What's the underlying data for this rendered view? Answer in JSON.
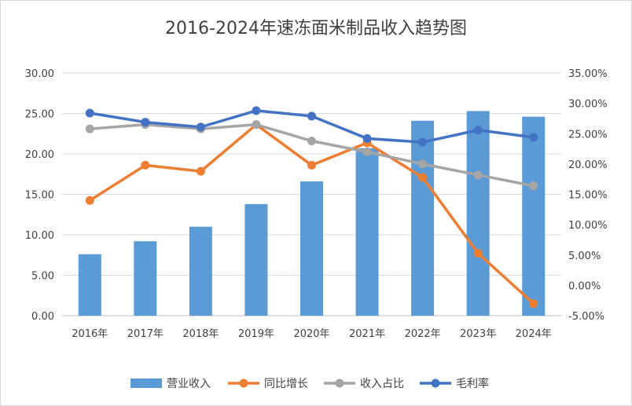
{
  "chart_data": {
    "type": "bar+line",
    "title": "2016-2024年速冻面米制品收入趋势图",
    "categories": [
      "2016年",
      "2017年",
      "2018年",
      "2019年",
      "2020年",
      "2021年",
      "2022年",
      "2023年",
      "2024年"
    ],
    "left_axis": {
      "ylim": [
        0,
        30
      ],
      "ticks": [
        "0.00",
        "5.00",
        "10.00",
        "15.00",
        "20.00",
        "25.00",
        "30.00"
      ]
    },
    "right_axis": {
      "ylim": [
        -5,
        35
      ],
      "ticks": [
        "-5.00%",
        "0.00%",
        "5.00%",
        "10.00%",
        "15.00%",
        "20.00%",
        "25.00%",
        "30.00%",
        "35.00%"
      ]
    },
    "series": [
      {
        "name": "营业收入",
        "type": "bar",
        "axis": "left",
        "color": "#5b9bd5",
        "values": [
          7.6,
          9.2,
          11.0,
          13.8,
          16.6,
          20.7,
          24.1,
          25.3,
          24.6
        ]
      },
      {
        "name": "同比增长",
        "type": "line",
        "axis": "right",
        "color": "#ed7d31",
        "values": [
          14.0,
          19.8,
          18.8,
          26.5,
          19.8,
          23.5,
          17.8,
          5.3,
          -3.0
        ]
      },
      {
        "name": "收入占比",
        "type": "line",
        "axis": "right",
        "color": "#a5a5a5",
        "values": [
          25.8,
          26.5,
          25.8,
          26.5,
          23.8,
          22.0,
          20.0,
          18.2,
          16.4
        ]
      },
      {
        "name": "毛利率",
        "type": "line",
        "axis": "right",
        "color": "#4472c4",
        "values": [
          28.4,
          26.9,
          26.1,
          28.8,
          27.9,
          24.2,
          23.6,
          25.6,
          24.4
        ]
      }
    ],
    "grid": true,
    "legend_position": "bottom"
  }
}
